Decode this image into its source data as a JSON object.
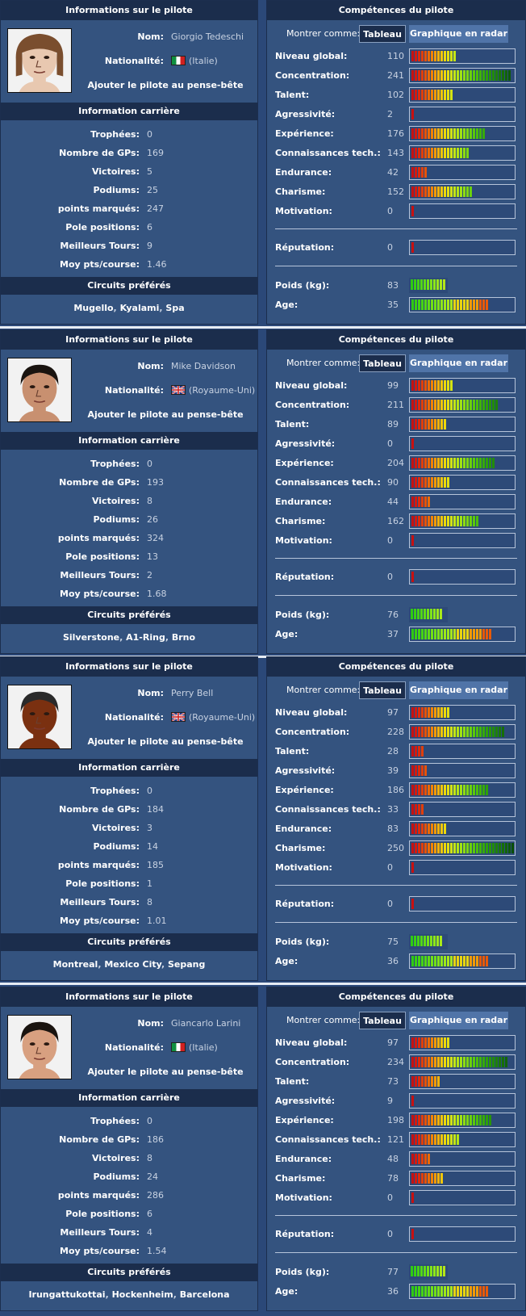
{
  "labels": {
    "info_header": "Informations sur le pilote",
    "skills_header": "Compétences du pilote",
    "name": "Nom:",
    "nationality": "Nationalité:",
    "add_memo": "Ajouter le pilote au pense-bête",
    "career_header": "Information carrière",
    "trophies": "Trophées:",
    "gps": "Nombre de GPs:",
    "wins": "Victoires:",
    "podiums": "Podiums:",
    "points": "points marqués:",
    "poles": "Pole positions:",
    "fastest": "Meilleurs Tours:",
    "avg": "Moy pts/course:",
    "circuits_header": "Circuits préférés",
    "show_as": "Montrer comme:",
    "table_btn": "Tableau",
    "radar_btn": "Graphique en radar",
    "skill_names": [
      "Niveau global:",
      "Concentration:",
      "Talent:",
      "Agressivité:",
      "Expérience:",
      "Connaissances tech.:",
      "Endurance:",
      "Charisme:",
      "Motivation:"
    ],
    "reputation": "Réputation:",
    "weight": "Poids (kg):",
    "age": "Age:"
  },
  "drivers": [
    {
      "name": "Giorgio Tedeschi",
      "nationality": "(Italie)",
      "flag_icon": "italy-flag-icon",
      "career": {
        "trophies": "0",
        "gps": "169",
        "wins": "5",
        "podiums": "25",
        "points": "247",
        "poles": "6",
        "fastest": "9",
        "avg": "1.46"
      },
      "circuits": [
        "Mugello",
        "Kyalami",
        "Spa"
      ],
      "skills": [
        "110",
        "241",
        "102",
        "2",
        "176",
        "143",
        "42",
        "152",
        "0"
      ],
      "reputation": "0",
      "weight": "83",
      "age": "35"
    },
    {
      "name": "Mike Davidson",
      "nationality": "(Royaume-Uni)",
      "flag_icon": "uk-flag-icon",
      "career": {
        "trophies": "0",
        "gps": "193",
        "wins": "8",
        "podiums": "26",
        "points": "324",
        "poles": "13",
        "fastest": "2",
        "avg": "1.68"
      },
      "circuits": [
        "Silverstone",
        "A1-Ring",
        "Brno"
      ],
      "skills": [
        "99",
        "211",
        "89",
        "0",
        "204",
        "90",
        "44",
        "162",
        "0"
      ],
      "reputation": "0",
      "weight": "76",
      "age": "37"
    },
    {
      "name": "Perry Bell",
      "nationality": "(Royaume-Uni)",
      "flag_icon": "uk-flag-icon",
      "career": {
        "trophies": "0",
        "gps": "184",
        "wins": "3",
        "podiums": "14",
        "points": "185",
        "poles": "1",
        "fastest": "8",
        "avg": "1.01"
      },
      "circuits": [
        "Montreal",
        "Mexico City",
        "Sepang"
      ],
      "skills": [
        "97",
        "228",
        "28",
        "39",
        "186",
        "33",
        "83",
        "250",
        "0"
      ],
      "reputation": "0",
      "weight": "75",
      "age": "36"
    },
    {
      "name": "Giancarlo Larini",
      "nationality": "(Italie)",
      "flag_icon": "italy-flag-icon",
      "career": {
        "trophies": "0",
        "gps": "186",
        "wins": "8",
        "podiums": "24",
        "points": "286",
        "poles": "6",
        "fastest": "4",
        "avg": "1.54"
      },
      "circuits": [
        "Irungattukottai",
        "Hockenheim",
        "Barcelona"
      ],
      "skills": [
        "97",
        "234",
        "73",
        "9",
        "198",
        "121",
        "48",
        "78",
        "0"
      ],
      "reputation": "0",
      "weight": "77",
      "age": "36"
    }
  ],
  "bar_fill": {
    "skills_max": 250,
    "weight_segments": [
      11,
      10,
      10,
      11
    ],
    "age_segments": [
      24,
      25,
      24,
      24
    ]
  },
  "colors": {
    "header_bg": "#1b2d4c",
    "panel_bg": "#34537f",
    "bar_red": "#e01a1a",
    "bar_yellow": "#e8e818",
    "bar_green": "#2ecb12"
  }
}
